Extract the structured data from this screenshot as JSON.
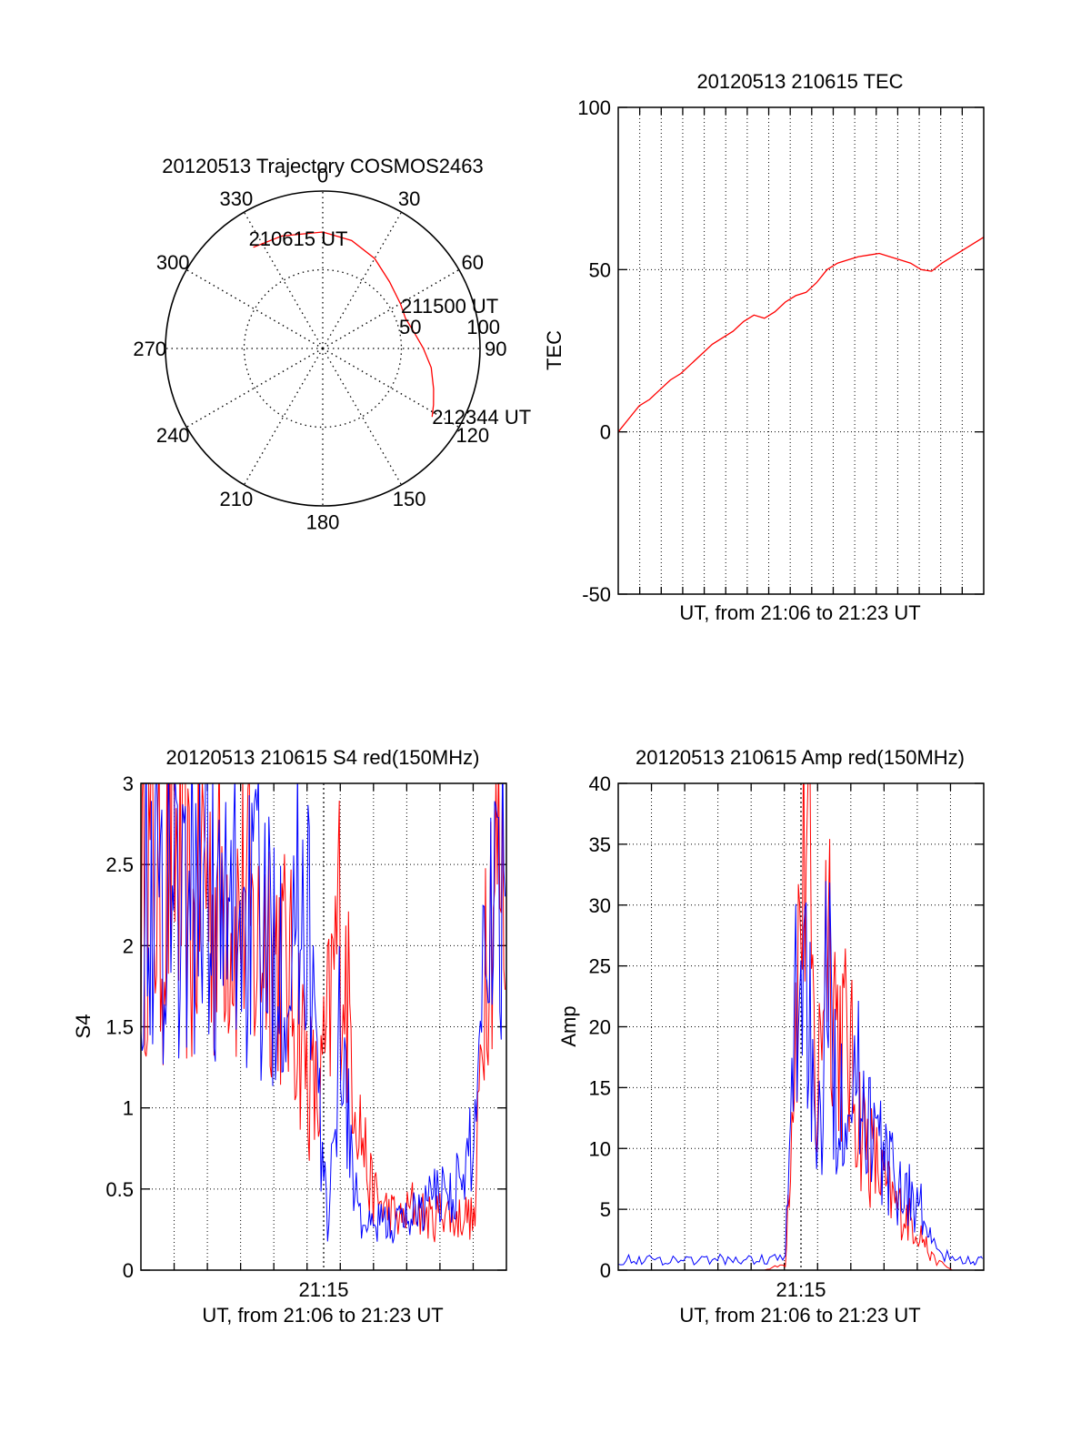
{
  "colors": {
    "series_a": "#ff0000",
    "series_b": "#0000ff",
    "axis": "#000000",
    "grid": "#000000"
  },
  "chart_data": [
    {
      "id": "trajectory",
      "type": "polar",
      "title": "20120513 Trajectory COSMOS2463",
      "angle_labels": [
        "0",
        "30",
        "60",
        "90",
        "120",
        "150",
        "180",
        "210",
        "240",
        "270",
        "300",
        "330"
      ],
      "radial_labels": [
        "50",
        "100"
      ],
      "r_max": 100,
      "grid": true,
      "series": [
        {
          "color": "#ff0000",
          "points": [
            [
              -34.5,
              78
            ],
            [
              -20,
              76
            ],
            [
              0,
              74
            ],
            [
              15,
              71
            ],
            [
              30,
              66
            ],
            [
              45,
              60
            ],
            [
              60,
              57
            ],
            [
              70,
              56
            ],
            [
              80,
              59
            ],
            [
              90,
              64
            ],
            [
              100,
              70
            ],
            [
              110,
              75
            ],
            [
              117,
              79
            ],
            [
              122,
              82
            ]
          ]
        }
      ],
      "annotations": [
        "210615 UT",
        "211500 UT",
        "212344 UT"
      ]
    },
    {
      "id": "tec",
      "type": "line",
      "title": "20120513 210615 TEC",
      "xlabel": "UT, from 21:06 to 21:23 UT",
      "ylabel": "TEC",
      "xlim": [
        0,
        17.5
      ],
      "ylim": [
        -50,
        100
      ],
      "yticks": [
        "-50",
        "0",
        "50",
        "100"
      ],
      "grid": true,
      "series": [
        {
          "color": "#ff0000",
          "x": [
            0,
            0.5,
            1,
            1.5,
            2,
            2.5,
            3,
            3.5,
            4,
            4.5,
            5,
            5.5,
            6,
            6.5,
            7,
            7.5,
            8,
            8.5,
            9,
            9.5,
            10,
            10.5,
            11,
            11.5,
            12,
            12.5,
            13,
            13.5,
            14,
            14.5,
            15,
            15.5,
            16,
            16.5,
            17,
            17.5
          ],
          "y": [
            0,
            4,
            8,
            10,
            13,
            16,
            18,
            21,
            24,
            27,
            29,
            31,
            34,
            36,
            35,
            37,
            40,
            42,
            43,
            46,
            50,
            52,
            53,
            54,
            54.5,
            55,
            54,
            53,
            52,
            50,
            49.5,
            52,
            54,
            56,
            58,
            60
          ]
        }
      ]
    },
    {
      "id": "s4",
      "type": "line",
      "title": "20120513 210615 S4 red(150MHz)",
      "xlabel": "UT, from 21:06 to 21:23 UT",
      "ylabel": "S4",
      "xtick_labels": [
        "21:15"
      ],
      "ylim": [
        0,
        3
      ],
      "yticks": [
        "0",
        "0.5",
        "1",
        "1.5",
        "2",
        "2.5",
        "3"
      ],
      "grid": true,
      "series": [
        {
          "color": "#ff0000",
          "x": [
            0,
            0.5,
            1,
            1.5,
            2,
            2.5,
            3,
            3.5,
            4,
            4.5,
            5,
            5.5,
            6,
            6.5,
            7,
            7.5,
            8,
            8.5,
            9,
            9.5,
            10,
            10.5,
            11,
            11.5,
            12,
            12.5,
            13,
            13.5,
            14,
            14.5,
            15,
            15.5,
            16,
            16.5,
            17,
            17.5
          ],
          "y": [
            2.2,
            2.5,
            2.1,
            2.7,
            2.3,
            2.0,
            2.6,
            2.2,
            2.4,
            2.1,
            2.3,
            1.9,
            2.2,
            2.0,
            1.8,
            1.6,
            1.2,
            1.0,
            1.5,
            2.2,
            1.5,
            0.9,
            0.5,
            0.4,
            0.35,
            0.3,
            0.4,
            0.35,
            0.3,
            0.4,
            0.3,
            0.35,
            0.3,
            2.2,
            2.5,
            2.3
          ]
        },
        {
          "color": "#0000ff",
          "x": [
            0,
            0.5,
            1,
            1.5,
            2,
            2.5,
            3,
            3.5,
            4,
            4.5,
            5,
            5.5,
            6,
            6.5,
            7,
            7.5,
            8,
            8.5,
            9,
            9.5,
            10,
            10.5,
            11,
            11.5,
            12,
            12.5,
            13,
            13.5,
            14,
            14.5,
            15,
            15.5,
            16,
            16.5,
            17,
            17.5
          ],
          "y": [
            2.3,
            2.4,
            2.2,
            2.6,
            2.1,
            2.3,
            2.5,
            2.2,
            2.0,
            2.3,
            2.1,
            2.2,
            1.9,
            2.1,
            2.0,
            2.2,
            2.4,
            1.0,
            0.2,
            1.6,
            0.8,
            0.3,
            0.25,
            0.3,
            0.28,
            0.3,
            0.35,
            0.4,
            0.45,
            0.5,
            0.5,
            0.55,
            0.9,
            2.3,
            2.5,
            2.4
          ]
        }
      ]
    },
    {
      "id": "amp",
      "type": "line",
      "title": "20120513 210615 Amp red(150MHz)",
      "xlabel": "UT, from 21:06 to 21:23 UT",
      "ylabel": "Amp",
      "xtick_labels": [
        "21:15"
      ],
      "ylim": [
        0,
        40
      ],
      "yticks": [
        "0",
        "5",
        "10",
        "15",
        "20",
        "25",
        "30",
        "35",
        "40"
      ],
      "grid": true,
      "series": [
        {
          "color": "#ff0000",
          "x": [
            0,
            1,
            2,
            3,
            4,
            5,
            6,
            7,
            8,
            8.5,
            9,
            9.5,
            10,
            10.5,
            11,
            11.5,
            12,
            12.5,
            13,
            13.5,
            14,
            14.5,
            15,
            16,
            17,
            17.5
          ],
          "y": [
            0,
            0,
            0,
            0,
            0,
            0,
            0,
            0,
            0.5,
            22,
            37,
            12,
            32,
            20,
            18,
            13,
            10,
            8,
            6,
            5,
            4,
            3,
            1,
            0,
            0,
            0
          ]
        },
        {
          "color": "#0000ff",
          "x": [
            0,
            1,
            2,
            3,
            4,
            5,
            6,
            7,
            8,
            8.5,
            9,
            9.5,
            10,
            10.5,
            11,
            11.5,
            12,
            12.5,
            13,
            13.5,
            14,
            14.5,
            15,
            16,
            17,
            17.5
          ],
          "y": [
            0.8,
            0.9,
            0.8,
            0.9,
            0.8,
            0.9,
            0.8,
            0.9,
            1,
            22,
            27,
            6,
            24,
            14,
            17,
            15,
            13,
            10,
            8,
            7,
            6,
            5,
            2,
            0.8,
            0.8,
            0.8
          ]
        }
      ]
    }
  ]
}
